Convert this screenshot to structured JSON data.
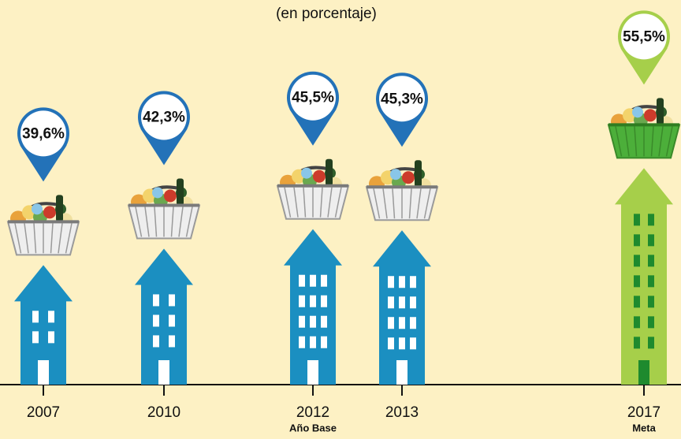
{
  "chart_data": {
    "type": "building-arrows",
    "subtitle": "(en porcentaje)",
    "categories": [
      "2007",
      "2010",
      "2012",
      "2013",
      "2017"
    ],
    "category_notes": [
      null,
      null,
      "Año Base",
      null,
      "Meta"
    ],
    "values": [
      39.6,
      42.3,
      45.5,
      45.3,
      55.5
    ],
    "value_labels": [
      "39,6%",
      "42,3%",
      "45,5%",
      "45,3%",
      "55,5%"
    ],
    "colors": [
      "#1b8fc1",
      "#1b8fc1",
      "#1b8fc1",
      "#1b8fc1",
      "#a6cf4a"
    ],
    "marker_colors": [
      "#2372b8",
      "#2372b8",
      "#2372b8",
      "#2372b8",
      "#a6cf4a"
    ],
    "ylim": [
      20,
      58
    ]
  }
}
